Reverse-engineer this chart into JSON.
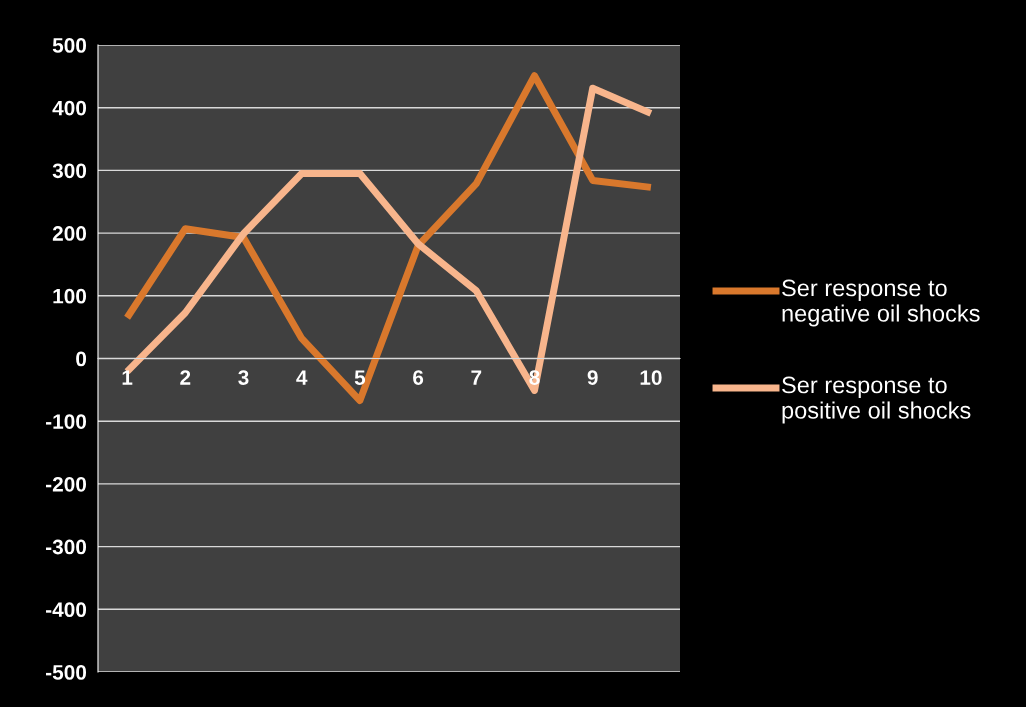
{
  "chart_data": {
    "type": "line",
    "categories": [
      "1",
      "2",
      "3",
      "4",
      "5",
      "6",
      "7",
      "8",
      "9",
      "10"
    ],
    "series": [
      {
        "name": "Ser response to negative oil shocks",
        "color": "#d9782c",
        "values": [
          65,
          207,
          193,
          32,
          -67,
          180,
          279,
          451,
          284,
          273
        ]
      },
      {
        "name": "Ser response to positive oil shocks",
        "color": "#f8b58c",
        "values": [
          -21,
          73,
          199,
          295,
          295,
          183,
          108,
          -51,
          431,
          391
        ]
      }
    ],
    "ylim": [
      -500,
      500
    ],
    "yticks": [
      -500,
      -400,
      -300,
      -200,
      -100,
      0,
      100,
      200,
      300,
      400,
      500
    ],
    "grid": "y",
    "legend": "right",
    "marker": "none",
    "line_style": "solid"
  }
}
